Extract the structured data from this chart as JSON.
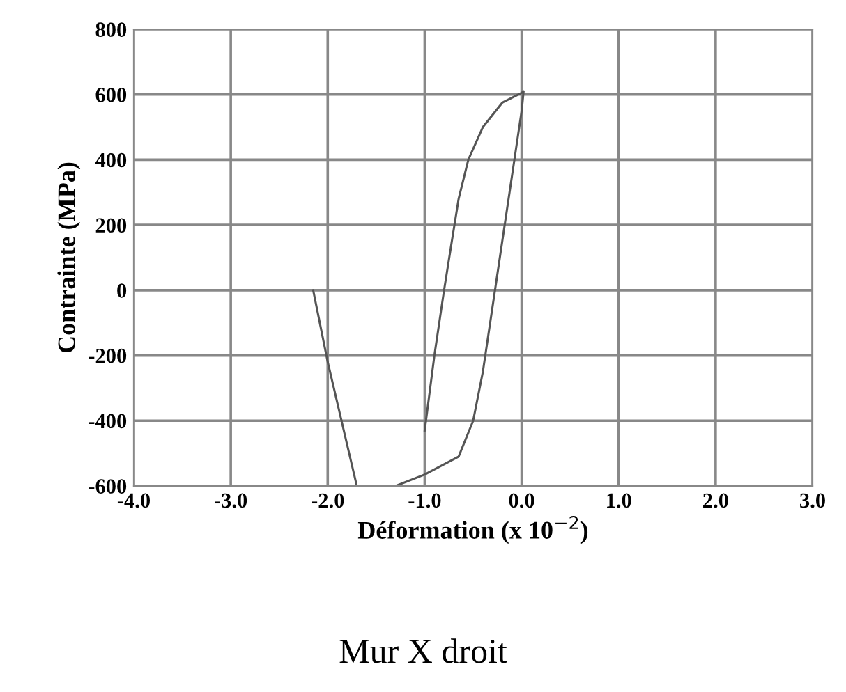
{
  "chart_data": {
    "type": "line",
    "title": "Mur X droit",
    "xlabel": "Déformation (x 10$^{−2}$)",
    "ylabel": "Contrainte (MPa)",
    "series": [
      {
        "color": "#555555",
        "x": [
          -1.0,
          -0.9,
          -0.8,
          -0.72,
          -0.65,
          -0.55,
          -0.4,
          -0.2,
          0.0,
          0.02,
          0.0,
          -0.1,
          -0.2,
          -0.3,
          -0.4,
          -0.5,
          -0.65,
          -1.0,
          -1.3,
          -1.7,
          -2.0,
          -2.15
        ],
        "values": [
          -430,
          -200,
          0,
          150,
          280,
          400,
          500,
          575,
          605,
          610,
          550,
          350,
          150,
          -50,
          -250,
          -400,
          -510,
          -565,
          -600,
          -600,
          -220,
          0
        ]
      }
    ],
    "xlim": [
      -4,
      3
    ],
    "xticks": [
      {
        "value": -4,
        "label": "-4.0"
      },
      {
        "value": -3,
        "label": "-3.0"
      },
      {
        "value": -2,
        "label": "-2.0"
      },
      {
        "value": -1,
        "label": "-1.0"
      },
      {
        "value": 0,
        "label": "0.0"
      },
      {
        "value": 1,
        "label": "1.0"
      },
      {
        "value": 2,
        "label": "2.0"
      },
      {
        "value": 3,
        "label": "3.0"
      }
    ],
    "ylim": [
      -600,
      800
    ],
    "yticks": [
      -600,
      -400,
      -200,
      0,
      200,
      400,
      600,
      800
    ],
    "grid": true,
    "marker": "none",
    "line_style": "solid"
  }
}
